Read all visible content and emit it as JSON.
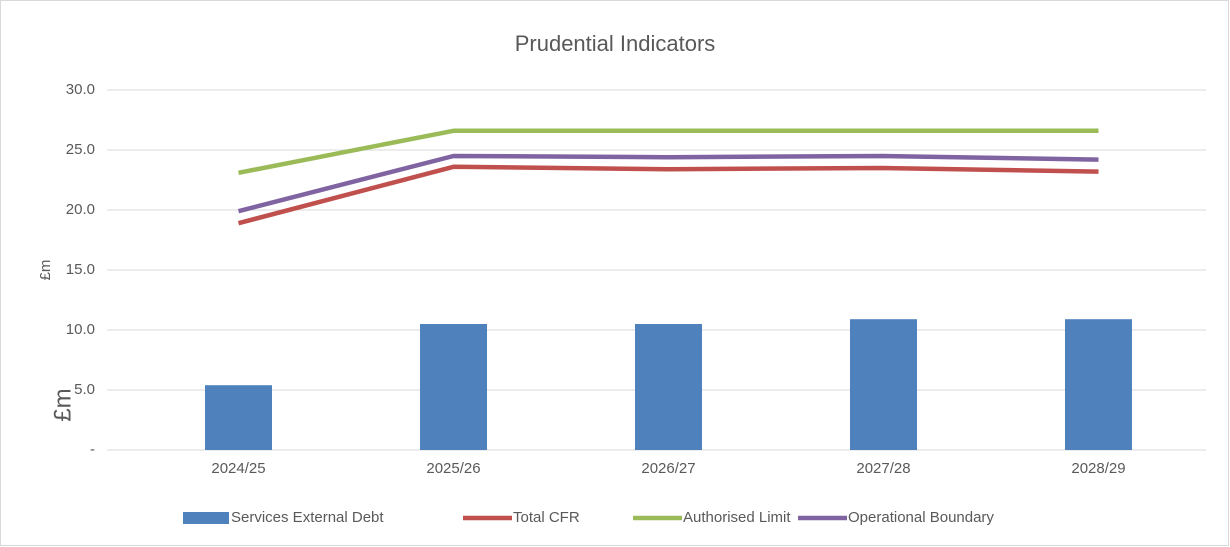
{
  "chart_data": {
    "type": "combo",
    "title": "Prudential Indicators",
    "ylabels": [
      "£m",
      "£m"
    ],
    "categories": [
      "2024/25",
      "2025/26",
      "2026/27",
      "2027/28",
      "2028/29"
    ],
    "series": [
      {
        "name": "Services External Debt",
        "type": "bar",
        "color": "#4f81bd",
        "values": [
          5.4,
          10.5,
          10.5,
          10.9,
          10.9
        ]
      },
      {
        "name": "Total CFR",
        "type": "line",
        "color": "#c0504d",
        "values": [
          18.9,
          23.6,
          23.4,
          23.5,
          23.2
        ]
      },
      {
        "name": "Authorised Limit",
        "type": "line",
        "color": "#9bbb59",
        "values": [
          23.1,
          26.6,
          26.6,
          26.6,
          26.6
        ]
      },
      {
        "name": "Operational Boundary",
        "type": "line",
        "color": "#8064a2",
        "values": [
          19.9,
          24.5,
          24.4,
          24.5,
          24.2
        ]
      }
    ],
    "ylim": [
      0,
      30
    ],
    "yticks": [
      {
        "value": 0,
        "label": "-"
      },
      {
        "value": 5,
        "label": "5.0"
      },
      {
        "value": 10,
        "label": "10.0"
      },
      {
        "value": 15,
        "label": "15.0"
      },
      {
        "value": 20,
        "label": "20.0"
      },
      {
        "value": 25,
        "label": "25.0"
      },
      {
        "value": 30,
        "label": "30.0"
      }
    ],
    "grid": true,
    "legend": "bottom"
  }
}
